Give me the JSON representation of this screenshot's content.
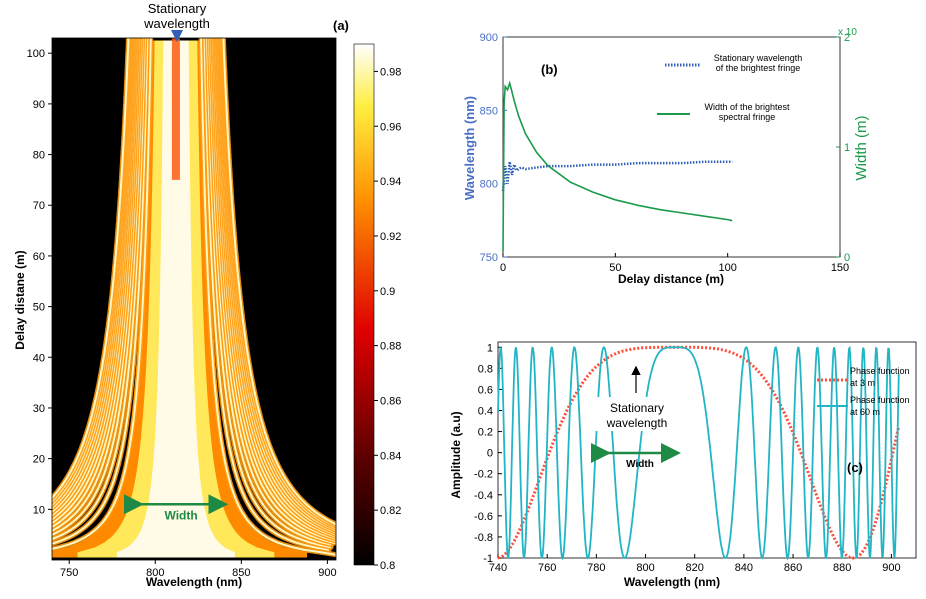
{
  "colors": {
    "blue_axis": "#4a6fc4",
    "green_axis": "#1a9a4a",
    "cyan": "#22b5c5",
    "red_dot": "#ff4d3a",
    "arrow_blue": "#2f5fb8",
    "width_green": "#1e8a46"
  },
  "chart_data": [
    {
      "type": "heatmap",
      "panel": "(a)",
      "xlabel": "Wavelength (nm)",
      "ylabel": "Delay distane (m)",
      "xlim": [
        740,
        905
      ],
      "ylim": [
        0,
        103
      ],
      "xticks": [
        "750",
        "800",
        "850",
        "900"
      ],
      "yticks": [
        "10",
        "20",
        "30",
        "40",
        "50",
        "60",
        "70",
        "80",
        "90",
        "100"
      ],
      "colorbar": {
        "min": 0.8,
        "max": 0.99,
        "ticks": [
          "0.8",
          "0.82",
          "0.84",
          "0.86",
          "0.88",
          "0.9",
          "0.92",
          "0.94",
          "0.96",
          "0.98"
        ]
      },
      "stationary_wavelength_nm": 812,
      "annotations": {
        "top": "Stationary wavelength",
        "width": "Width"
      },
      "width_marker": {
        "x_from": 787,
        "x_to": 843,
        "y": 11
      }
    },
    {
      "type": "line",
      "panel": "(b)",
      "xlabel": "Delay distance (m)",
      "ylabel_left": "Wavelength (nm)",
      "ylabel_right": "Width (m)",
      "right_multiplier": "x 10",
      "xlim": [
        0,
        150
      ],
      "ylim_left": [
        750,
        900
      ],
      "ylim_right": [
        0,
        2
      ],
      "xticks": [
        "0",
        "50",
        "100",
        "150"
      ],
      "yticks_left": [
        "750",
        "800",
        "850",
        "900"
      ],
      "yticks_right": [
        "0",
        "1",
        "2"
      ],
      "series": [
        {
          "name": "Stationary wavelength of the brightest fringe",
          "axis": "left",
          "style": "dotted",
          "x": [
            0,
            1,
            2,
            3,
            4,
            5,
            6,
            8,
            10,
            15,
            20,
            30,
            40,
            50,
            60,
            70,
            80,
            90,
            100,
            102
          ],
          "y": [
            795,
            812,
            800,
            815,
            806,
            813,
            809,
            811,
            810,
            811,
            812,
            812,
            813,
            813,
            814,
            814,
            814,
            815,
            815,
            815
          ]
        },
        {
          "name": "Width of the brightest spectral fringe",
          "axis": "right",
          "style": "solid",
          "x": [
            0,
            0.5,
            1,
            2,
            3,
            4,
            5,
            7,
            10,
            15,
            20,
            30,
            40,
            50,
            60,
            70,
            80,
            90,
            100,
            102
          ],
          "y": [
            0.05,
            1.4,
            1.55,
            1.52,
            1.58,
            1.5,
            1.42,
            1.28,
            1.12,
            0.95,
            0.83,
            0.68,
            0.59,
            0.52,
            0.47,
            0.43,
            0.4,
            0.37,
            0.34,
            0.33
          ]
        }
      ]
    },
    {
      "type": "line",
      "panel": "(c)",
      "xlabel": "Wavelength (nm)",
      "ylabel": "Amplitude (a.u)",
      "xlim": [
        740,
        910
      ],
      "ylim": [
        -1,
        1.05
      ],
      "xticks": [
        "740",
        "760",
        "780",
        "800",
        "820",
        "840",
        "860",
        "880",
        "900"
      ],
      "yticks": [
        "-1",
        "-0.8",
        "-0.6",
        "-0.4",
        "-0.2",
        "0",
        "0.2",
        "0.4",
        "0.6",
        "0.8",
        "1"
      ],
      "annotations": {
        "stationary": "Stationary wavelength",
        "width": "Width"
      },
      "series": [
        {
          "name": "Phase function at 3 m",
          "style": "dotted",
          "x0": 740,
          "x1": 903,
          "center": 812,
          "curvature": 0.0006
        },
        {
          "name": "Phase function at 60 m",
          "style": "solid",
          "x0": 740,
          "x1": 903,
          "center": 812,
          "curvature": 0.0075
        }
      ]
    }
  ]
}
